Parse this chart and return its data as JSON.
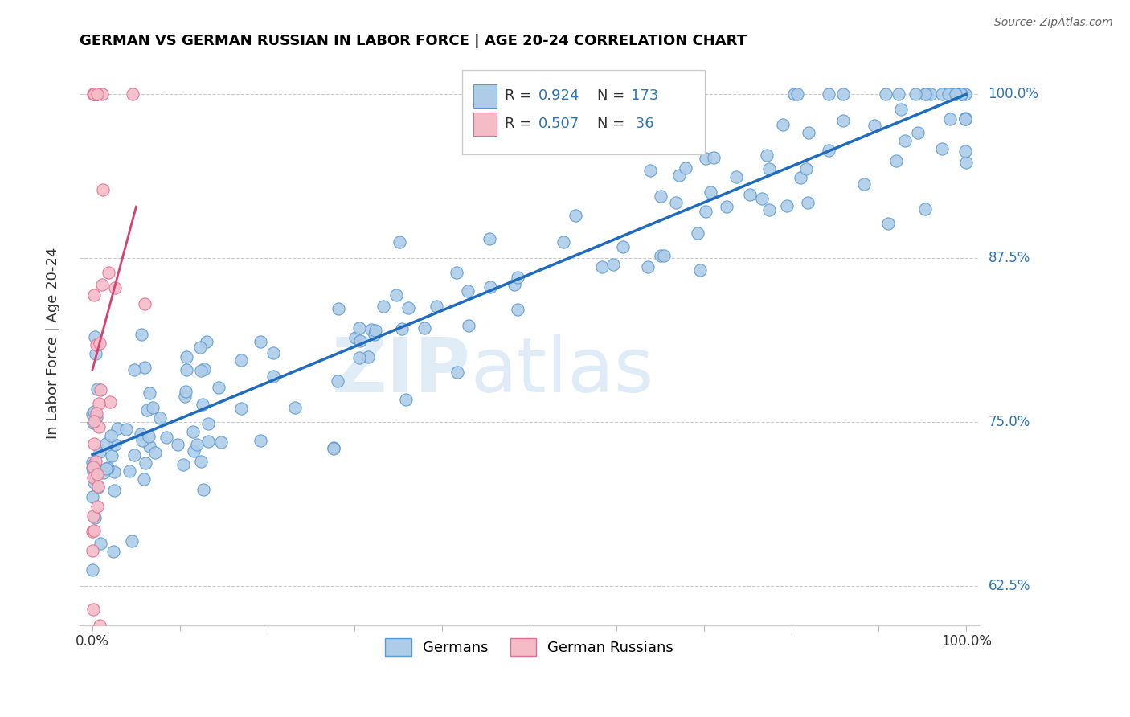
{
  "title": "GERMAN VS GERMAN RUSSIAN IN LABOR FORCE | AGE 20-24 CORRELATION CHART",
  "source": "Source: ZipAtlas.com",
  "ylabel": "In Labor Force | Age 20-24",
  "xlim": [
    -0.015,
    1.015
  ],
  "ylim": [
    0.595,
    1.025
  ],
  "ytick_positions": [
    0.625,
    0.75,
    0.875,
    1.0
  ],
  "ytick_labels": [
    "62.5%",
    "75.0%",
    "87.5%",
    "100.0%"
  ],
  "german_color": "#aecce8",
  "german_edge_color": "#5b9bd5",
  "german_russian_color": "#f5bcc8",
  "german_russian_edge_color": "#e07090",
  "line_color_german": "#1f6bbf",
  "line_color_russian": "#d94070",
  "watermark_zip": "ZIP",
  "watermark_atlas": "atlas",
  "legend_R_german": "0.924",
  "legend_N_german": "173",
  "legend_R_russian": "0.507",
  "legend_N_russian": "36",
  "background_color": "#ffffff",
  "grid_color": "#cccccc",
  "title_color": "#000000",
  "axis_label_color": "#333333",
  "tick_label_color_y": "#2e75b6",
  "tick_label_color_x": "#333333",
  "blue_number_color": "#2e75b6",
  "seed": 42
}
